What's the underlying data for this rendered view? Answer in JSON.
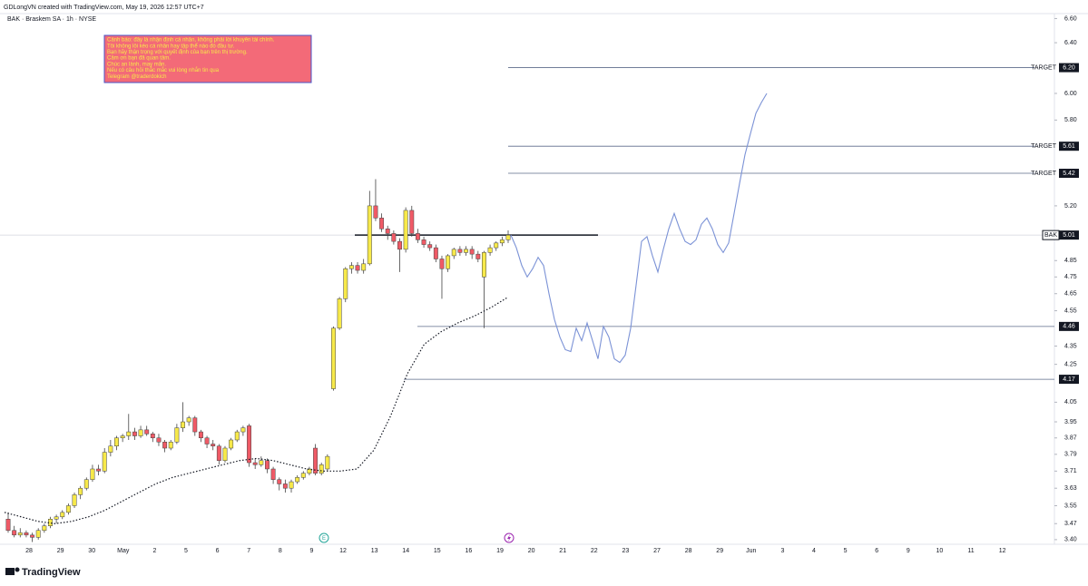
{
  "chart_data": {
    "type": "candlestick",
    "credit": "GDLongVN created with TradingView.com, May 19, 2026 12:57 UTC+7",
    "title": "BAK · Braskem SA · 1h · NYSE",
    "brand": "TradingView",
    "log_scale": true,
    "note": [
      "Cảnh báo: đây là nhận định cá nhân, không phải lời khuyên tài chính.",
      "Tôi không lôi kéo cá nhân hay tập thể nào đó đầu tư.",
      "Bạn hãy thận trọng với quyết định của bạn trên thị trường.",
      "Cảm ơn bạn đã quan tâm.",
      "Chúc an lành, may mắn.",
      "Nếu có câu hỏi thắc mắc vui lòng nhắn tin qua",
      "Telegram @traderdokich"
    ],
    "categories": [
      "28",
      "29",
      "30",
      "May",
      "2",
      "5",
      "6",
      "7",
      "8",
      "9",
      "12",
      "13",
      "14",
      "15",
      "16",
      "19",
      "20",
      "21",
      "22",
      "23",
      "27",
      "28",
      "29",
      "Jun",
      "3",
      "4",
      "5",
      "6",
      "9",
      "10",
      "11",
      "12"
    ],
    "ylim": [
      3.38,
      6.68
    ],
    "yticks": [
      {
        "value": 6.6,
        "label": "6.60"
      },
      {
        "value": 6.4,
        "label": "6.40"
      },
      {
        "value": 6,
        "label": "6.00"
      },
      {
        "value": 5.8,
        "label": "5.80"
      },
      {
        "value": 5.2,
        "label": "5.20"
      },
      4.85,
      4.75,
      4.65,
      4.55,
      4.35,
      4.25,
      4.05,
      3.95,
      3.87,
      3.79,
      3.71,
      3.63,
      3.55,
      3.47,
      {
        "value": 3.4,
        "label": "3.40"
      }
    ],
    "up_color": "#f7e94a",
    "down_color": "#ef5a66",
    "ohlc": [
      [
        3.49,
        3.52,
        3.43,
        3.44
      ],
      [
        3.44,
        3.46,
        3.41,
        3.42
      ],
      [
        3.42,
        3.45,
        3.41,
        3.43
      ],
      [
        3.43,
        3.44,
        3.41,
        3.42
      ],
      [
        3.42,
        3.43,
        3.39,
        3.41
      ],
      [
        3.41,
        3.45,
        3.4,
        3.44
      ],
      [
        3.44,
        3.47,
        3.43,
        3.46
      ],
      [
        3.46,
        3.5,
        3.45,
        3.49
      ],
      [
        3.49,
        3.51,
        3.47,
        3.5
      ],
      [
        3.5,
        3.53,
        3.49,
        3.52
      ],
      [
        3.52,
        3.56,
        3.51,
        3.55
      ],
      [
        3.55,
        3.61,
        3.54,
        3.6
      ],
      [
        3.6,
        3.64,
        3.58,
        3.63
      ],
      [
        3.63,
        3.68,
        3.62,
        3.67
      ],
      [
        3.67,
        3.74,
        3.66,
        3.72
      ],
      [
        3.72,
        3.74,
        3.69,
        3.71
      ],
      [
        3.71,
        3.82,
        3.7,
        3.8
      ],
      [
        3.8,
        3.86,
        3.78,
        3.83
      ],
      [
        3.83,
        3.88,
        3.81,
        3.87
      ],
      [
        3.87,
        3.89,
        3.85,
        3.88
      ],
      [
        3.88,
        3.99,
        3.86,
        3.9
      ],
      [
        3.9,
        3.92,
        3.86,
        3.88
      ],
      [
        3.88,
        3.93,
        3.87,
        3.91
      ],
      [
        3.91,
        3.93,
        3.88,
        3.89
      ],
      [
        3.89,
        3.9,
        3.85,
        3.87
      ],
      [
        3.87,
        3.89,
        3.83,
        3.85
      ],
      [
        3.85,
        3.86,
        3.8,
        3.82
      ],
      [
        3.82,
        3.86,
        3.81,
        3.85
      ],
      [
        3.85,
        3.94,
        3.84,
        3.92
      ],
      [
        3.92,
        4.05,
        3.9,
        3.95
      ],
      [
        3.95,
        3.98,
        3.93,
        3.97
      ],
      [
        3.97,
        3.98,
        3.88,
        3.9
      ],
      [
        3.9,
        3.91,
        3.85,
        3.87
      ],
      [
        3.87,
        3.88,
        3.82,
        3.84
      ],
      [
        3.84,
        3.86,
        3.81,
        3.83
      ],
      [
        3.83,
        3.84,
        3.74,
        3.76
      ],
      [
        3.76,
        3.83,
        3.75,
        3.82
      ],
      [
        3.82,
        3.87,
        3.81,
        3.86
      ],
      [
        3.86,
        3.91,
        3.85,
        3.9
      ],
      [
        3.9,
        3.93,
        3.88,
        3.92
      ],
      [
        3.93,
        3.94,
        3.73,
        3.75
      ],
      [
        3.75,
        3.77,
        3.72,
        3.74
      ],
      [
        3.74,
        3.78,
        3.73,
        3.76
      ],
      [
        3.76,
        3.77,
        3.7,
        3.72
      ],
      [
        3.72,
        3.73,
        3.65,
        3.67
      ],
      [
        3.67,
        3.68,
        3.62,
        3.65
      ],
      [
        3.65,
        3.67,
        3.61,
        3.63
      ],
      [
        3.63,
        3.67,
        3.61,
        3.66
      ],
      [
        3.66,
        3.69,
        3.65,
        3.68
      ],
      [
        3.68,
        3.71,
        3.67,
        3.7
      ],
      [
        3.7,
        3.73,
        3.69,
        3.72
      ],
      [
        3.82,
        3.84,
        3.69,
        3.7
      ],
      [
        3.7,
        3.75,
        3.69,
        3.74
      ],
      [
        3.72,
        3.79,
        3.71,
        3.78
      ],
      [
        4.12,
        4.46,
        4.11,
        4.45
      ],
      [
        4.45,
        4.63,
        4.44,
        4.62
      ],
      [
        4.62,
        4.81,
        4.6,
        4.8
      ],
      [
        4.8,
        4.84,
        4.77,
        4.82
      ],
      [
        4.82,
        4.84,
        4.77,
        4.79
      ],
      [
        4.79,
        4.86,
        4.77,
        4.83
      ],
      [
        4.83,
        5.3,
        4.82,
        5.2
      ],
      [
        5.2,
        5.38,
        5.1,
        5.12
      ],
      [
        5.12,
        5.15,
        5.03,
        5.05
      ],
      [
        5.05,
        5.07,
        4.98,
        5.02
      ],
      [
        5.02,
        5.04,
        4.95,
        4.97
      ],
      [
        4.97,
        4.99,
        4.78,
        4.92
      ],
      [
        4.92,
        5.19,
        4.9,
        5.17
      ],
      [
        5.17,
        5.2,
        5.0,
        5.02
      ],
      [
        5.02,
        5.05,
        4.96,
        4.98
      ],
      [
        4.98,
        5.0,
        4.93,
        4.95
      ],
      [
        4.95,
        4.97,
        4.91,
        4.93
      ],
      [
        4.93,
        4.95,
        4.84,
        4.86
      ],
      [
        4.86,
        4.88,
        4.62,
        4.8
      ],
      [
        4.8,
        4.89,
        4.78,
        4.88
      ],
      [
        4.88,
        4.93,
        4.86,
        4.92
      ],
      [
        4.92,
        4.94,
        4.88,
        4.9
      ],
      [
        4.9,
        4.94,
        4.88,
        4.92
      ],
      [
        4.92,
        4.94,
        4.86,
        4.89
      ],
      [
        4.89,
        4.91,
        4.84,
        4.86
      ],
      [
        4.75,
        4.91,
        4.45,
        4.9
      ],
      [
        4.9,
        4.95,
        4.88,
        4.93
      ],
      [
        4.93,
        4.97,
        4.91,
        4.96
      ],
      [
        4.96,
        5.0,
        4.94,
        4.98
      ],
      [
        4.98,
        5.04,
        4.96,
        5.01
      ]
    ],
    "moving_average": [
      3.52,
      3.5,
      3.48,
      3.47,
      3.48,
      3.5,
      3.53,
      3.57,
      3.61,
      3.65,
      3.68,
      3.7,
      3.72,
      3.74,
      3.76,
      3.77,
      3.76,
      3.74,
      3.72,
      3.71,
      3.71,
      3.72,
      3.81,
      3.98,
      4.2,
      4.36,
      4.43,
      4.48,
      4.52,
      4.57,
      4.63
    ],
    "projection": [
      5.01,
      4.93,
      4.82,
      4.75,
      4.8,
      4.87,
      4.82,
      4.65,
      4.5,
      4.4,
      4.33,
      4.32,
      4.45,
      4.38,
      4.48,
      4.38,
      4.28,
      4.46,
      4.4,
      4.28,
      4.26,
      4.3,
      4.45,
      4.7,
      4.97,
      5.0,
      4.88,
      4.78,
      4.92,
      5.05,
      5.15,
      5.05,
      4.97,
      4.95,
      4.98,
      5.08,
      5.12,
      5.05,
      4.95,
      4.9,
      4.96,
      5.15,
      5.35,
      5.55,
      5.7,
      5.85,
      5.93,
      6.0
    ],
    "levels": [
      {
        "name": "TARGET",
        "price": {
          "value": 6.2,
          "label": "6.20"
        }
      },
      {
        "name": "TARGET",
        "price": 5.61
      },
      {
        "name": "TARGET",
        "price": 5.42
      },
      {
        "name": "BAK",
        "price": 5.01
      },
      {
        "price": 4.46
      },
      {
        "price": 4.17
      }
    ],
    "events": [
      "E"
    ]
  }
}
